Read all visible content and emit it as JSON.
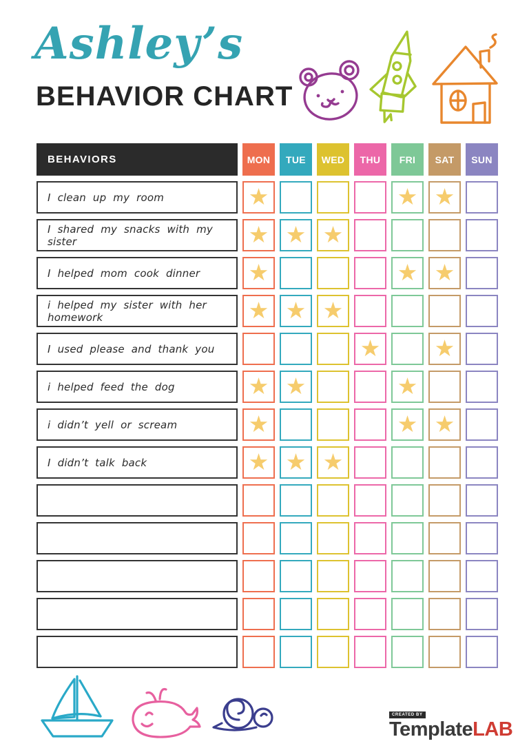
{
  "header": {
    "script_title": "Ashley’s",
    "main_title": "BEHAVIOR CHART",
    "script_title_color": "#35a3b2"
  },
  "table": {
    "behaviors_header": "BEHAVIORS",
    "header_bg": "#2b2b2b",
    "days": [
      {
        "label": "MON",
        "color": "#ee6e4e"
      },
      {
        "label": "TUE",
        "color": "#33a9bd"
      },
      {
        "label": "WED",
        "color": "#ddc22f"
      },
      {
        "label": "THU",
        "color": "#ec67a8"
      },
      {
        "label": "FRI",
        "color": "#7ec897"
      },
      {
        "label": "SAT",
        "color": "#c49a67"
      },
      {
        "label": "SUN",
        "color": "#8b85c1"
      }
    ],
    "star_glyph": "★",
    "star_color": "#f6cc6d",
    "rows": [
      {
        "label": "I clean up my room",
        "stars": [
          "MON",
          "FRI",
          "SAT"
        ]
      },
      {
        "label": "I shared my snacks with my sister",
        "stars": [
          "MON",
          "TUE",
          "WED"
        ]
      },
      {
        "label": "I helped mom cook dinner",
        "stars": [
          "MON",
          "FRI",
          "SAT"
        ]
      },
      {
        "label": "i helped my sister with her homework",
        "stars": [
          "MON",
          "TUE",
          "WED"
        ]
      },
      {
        "label": "I used please and thank you",
        "stars": [
          "THU",
          "SAT"
        ]
      },
      {
        "label": "i helped feed the dog",
        "stars": [
          "MON",
          "TUE",
          "FRI"
        ]
      },
      {
        "label": "i didn’t yell or scream",
        "stars": [
          "MON",
          "FRI",
          "SAT"
        ]
      },
      {
        "label": "I didn’t talk back",
        "stars": [
          "MON",
          "TUE",
          "WED"
        ]
      },
      {
        "label": "",
        "stars": []
      },
      {
        "label": "",
        "stars": []
      },
      {
        "label": "",
        "stars": []
      },
      {
        "label": "",
        "stars": []
      },
      {
        "label": "",
        "stars": []
      }
    ]
  },
  "decorations": {
    "colors": {
      "bear": "#953b91",
      "rocket": "#a6c72f",
      "house": "#e8872e",
      "sailboat": "#2aa9c8",
      "whale": "#e7609f",
      "snail": "#3b3e8e"
    }
  },
  "footer": {
    "created_by": "CREATED BY",
    "brand_name": "Template",
    "brand_suffix": "LAB",
    "brand_suffix_color": "#cf3c33"
  }
}
